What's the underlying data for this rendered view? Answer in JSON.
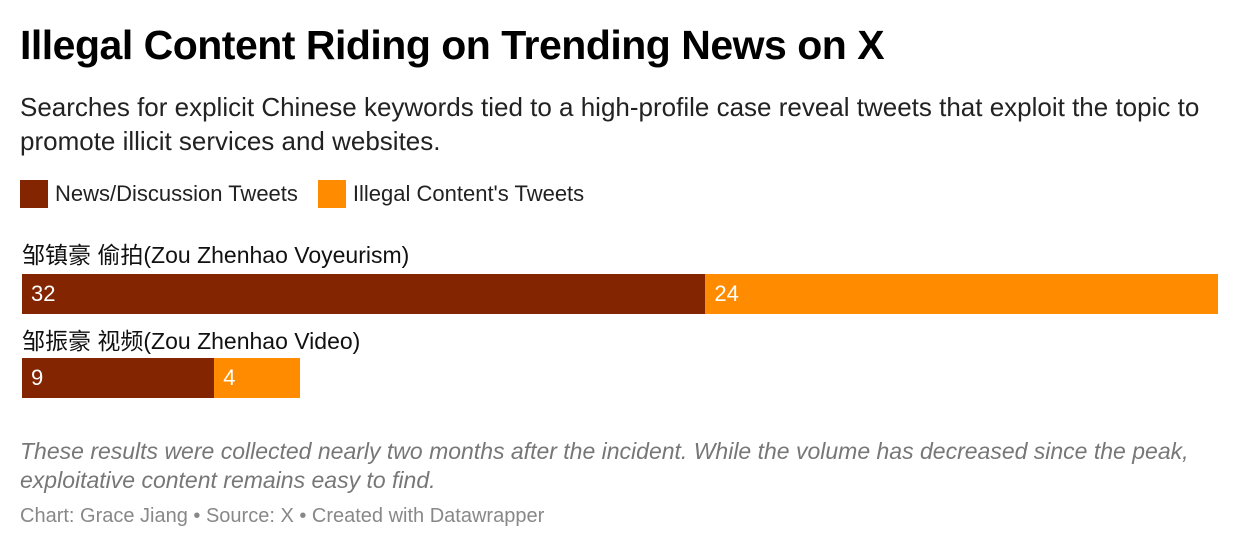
{
  "title": "Illegal Content Riding on Trending News on X",
  "subtitle": "Searches for explicit Chinese keywords tied to a high-profile case reveal tweets that exploit the topic to promote illicit services and websites.",
  "colors": {
    "news": "#832500",
    "illegal": "#ff8c00"
  },
  "chart_data": {
    "type": "bar",
    "orientation": "horizontal",
    "stacked": true,
    "categories": [
      "邹镇豪 偷拍(Zou Zhenhao Voyeurism)",
      "邹振豪 视频(Zou Zhenhao Video)"
    ],
    "series": [
      {
        "name": "News/Discussion Tweets",
        "values": [
          32,
          9
        ]
      },
      {
        "name": "Illegal Content's Tweets",
        "values": [
          24,
          4
        ]
      }
    ],
    "legend": "top-left",
    "grid": false
  },
  "notes": "These results were collected nearly two months after the incident. While the volume has decreased since the peak, exploitative content remains easy to find.",
  "byline": "Chart: Grace Jiang • Source: X • Created with Datawrapper"
}
